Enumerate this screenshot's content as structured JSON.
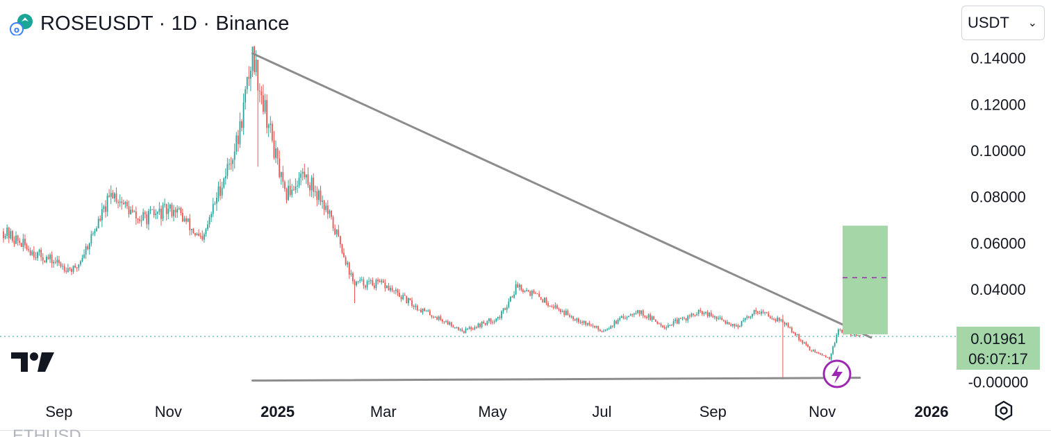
{
  "header": {
    "title": "ROSEUSDT · 1D · Binance"
  },
  "currency_select": {
    "value": "USDT"
  },
  "price_label": {
    "price": "0.01961",
    "countdown": "06:07:17"
  },
  "bottom_cut_text": "ETHUSD",
  "colors": {
    "up": "#26a69a",
    "down": "#ef5350",
    "trendline": "#8c8c8c",
    "target_box": "#a5d6a7",
    "target_line": "#9c27b0",
    "dotted_price": "#26a69a"
  },
  "chart_data": {
    "type": "candlestick",
    "title": "ROSEUSDT · 1D · Binance",
    "xlabel": "",
    "ylabel": "",
    "y_ticks": [
      "0.14000",
      "0.12000",
      "0.10000",
      "0.08000",
      "0.06000",
      "0.04000",
      "-0.00000"
    ],
    "x_ticks": [
      "Sep",
      "Nov",
      "2025",
      "Mar",
      "May",
      "Jul",
      "Sep",
      "Nov",
      "2026"
    ],
    "ylim": [
      -0.002,
      0.145
    ],
    "current_price": 0.01961,
    "price_path": [
      [
        "2024-08-01",
        0.065
      ],
      [
        "2024-08-20",
        0.055
      ],
      [
        "2024-09-10",
        0.048
      ],
      [
        "2024-10-01",
        0.082
      ],
      [
        "2024-10-15",
        0.07
      ],
      [
        "2024-11-05",
        0.075
      ],
      [
        "2024-11-20",
        0.06
      ],
      [
        "2024-11-28",
        0.08
      ],
      [
        "2024-12-10",
        0.105
      ],
      [
        "2024-12-18",
        0.142
      ],
      [
        "2024-12-25",
        0.118
      ],
      [
        "2025-01-05",
        0.08
      ],
      [
        "2025-01-15",
        0.09
      ],
      [
        "2025-01-25",
        0.08
      ],
      [
        "2025-02-05",
        0.06
      ],
      [
        "2025-02-12",
        0.043
      ],
      [
        "2025-03-01",
        0.042
      ],
      [
        "2025-03-20",
        0.032
      ],
      [
        "2025-04-15",
        0.022
      ],
      [
        "2025-05-05",
        0.028
      ],
      [
        "2025-05-15",
        0.042
      ],
      [
        "2025-06-10",
        0.03
      ],
      [
        "2025-07-01",
        0.022
      ],
      [
        "2025-07-20",
        0.031
      ],
      [
        "2025-08-05",
        0.024
      ],
      [
        "2025-08-25",
        0.03
      ],
      [
        "2025-09-15",
        0.024
      ],
      [
        "2025-09-25",
        0.031
      ],
      [
        "2025-10-10",
        0.026
      ],
      [
        "2025-10-25",
        0.014
      ],
      [
        "2025-11-05",
        0.01
      ],
      [
        "2025-11-10",
        0.022
      ],
      [
        "2025-11-22",
        0.0196
      ]
    ],
    "descending_resistance": {
      "start": [
        "2024-12-18",
        0.142
      ],
      "end": [
        "2025-11-22",
        0.02
      ]
    },
    "horizontal_support": {
      "start": [
        "2024-12-18",
        0.0005
      ],
      "end": [
        "2025-11-22",
        0.0005
      ]
    },
    "target_zone": {
      "from": 0.0205,
      "to": 0.0675,
      "midline": 0.045
    }
  }
}
